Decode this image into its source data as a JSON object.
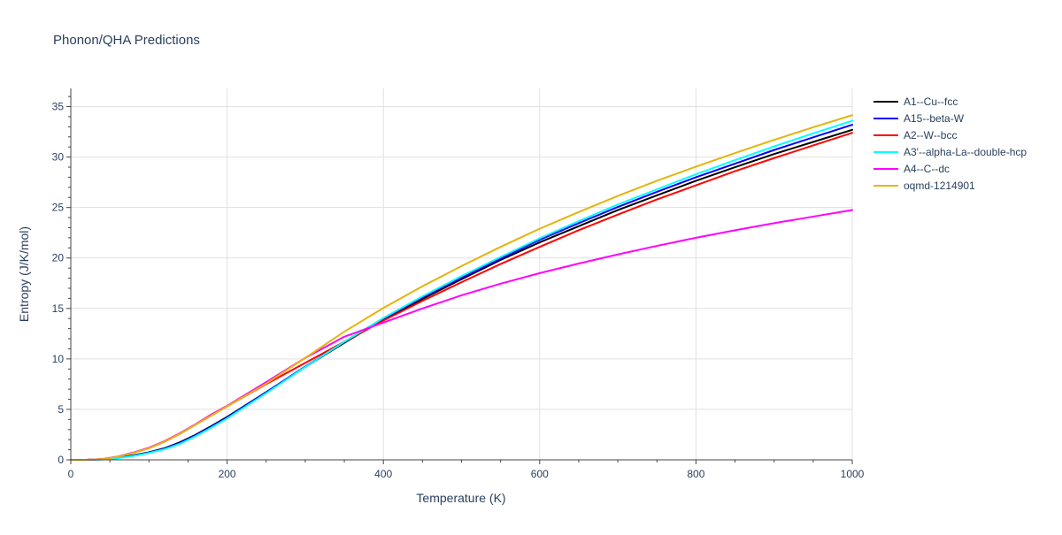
{
  "chart_data": {
    "type": "line",
    "title": "Phonon/QHA Predictions",
    "xlabel": "Temperature (K)",
    "ylabel": "Entropy (J/K/mol)",
    "xlim": [
      0,
      1000
    ],
    "ylim": [
      0,
      36.8
    ],
    "x_ticks": [
      0,
      200,
      400,
      600,
      800,
      1000
    ],
    "y_ticks": [
      0,
      5,
      10,
      15,
      20,
      25,
      30,
      35
    ],
    "x_minor_step": 50,
    "y_minor_step": 1,
    "grid": true,
    "legend_position": "right",
    "x": [
      0,
      20,
      40,
      60,
      80,
      100,
      120,
      140,
      160,
      180,
      200,
      250,
      300,
      350,
      400,
      450,
      500,
      550,
      600,
      650,
      700,
      750,
      800,
      850,
      900,
      950,
      1000
    ],
    "series": [
      {
        "name": "A1--Cu--fcc",
        "color": "#000000",
        "values": [
          0,
          0.0,
          0.05,
          0.2,
          0.45,
          0.75,
          1.15,
          1.75,
          2.5,
          3.35,
          4.25,
          6.7,
          9.2,
          11.6,
          13.9,
          15.95,
          17.9,
          19.8,
          21.55,
          23.15,
          24.75,
          26.2,
          27.65,
          29.0,
          30.3,
          31.5,
          32.7
        ]
      },
      {
        "name": "A15--beta-W",
        "color": "#0000ff",
        "values": [
          0,
          0.0,
          0.04,
          0.18,
          0.42,
          0.72,
          1.1,
          1.7,
          2.45,
          3.3,
          4.2,
          6.7,
          9.25,
          11.7,
          14.0,
          16.1,
          18.05,
          19.95,
          21.8,
          23.45,
          25.05,
          26.55,
          28.0,
          29.35,
          30.7,
          31.95,
          33.2
        ]
      },
      {
        "name": "A2--W--bcc",
        "color": "#ff0000",
        "values": [
          0,
          0.0,
          0.08,
          0.3,
          0.7,
          1.15,
          1.8,
          2.6,
          3.5,
          4.4,
          5.3,
          7.5,
          9.6,
          11.7,
          13.8,
          15.75,
          17.6,
          19.4,
          21.1,
          22.75,
          24.3,
          25.8,
          27.2,
          28.6,
          29.9,
          31.15,
          32.4
        ]
      },
      {
        "name": "A3'--alpha-La--double-hcp",
        "color": "#00ffff",
        "values": [
          0,
          0.0,
          0.03,
          0.15,
          0.38,
          0.68,
          1.05,
          1.6,
          2.35,
          3.2,
          4.1,
          6.6,
          9.2,
          11.7,
          14.05,
          16.2,
          18.2,
          20.1,
          21.95,
          23.65,
          25.3,
          26.8,
          28.3,
          29.7,
          31.05,
          32.35,
          33.6
        ]
      },
      {
        "name": "A4--C--dc",
        "color": "#ff00ff",
        "values": [
          0,
          0.0,
          0.08,
          0.32,
          0.72,
          1.2,
          1.85,
          2.65,
          3.55,
          4.5,
          5.35,
          7.7,
          10.1,
          12.2,
          13.6,
          15.0,
          16.3,
          17.45,
          18.5,
          19.45,
          20.35,
          21.2,
          22.0,
          22.75,
          23.45,
          24.1,
          24.75
        ]
      },
      {
        "name": "oqmd-1214901",
        "color": "#e6b30e",
        "values": [
          0,
          0.0,
          0.07,
          0.3,
          0.68,
          1.15,
          1.8,
          2.6,
          3.5,
          4.4,
          5.3,
          7.55,
          10.1,
          12.7,
          15.05,
          17.2,
          19.2,
          21.1,
          22.9,
          24.55,
          26.15,
          27.65,
          29.05,
          30.4,
          31.7,
          32.95,
          34.15
        ]
      }
    ]
  }
}
